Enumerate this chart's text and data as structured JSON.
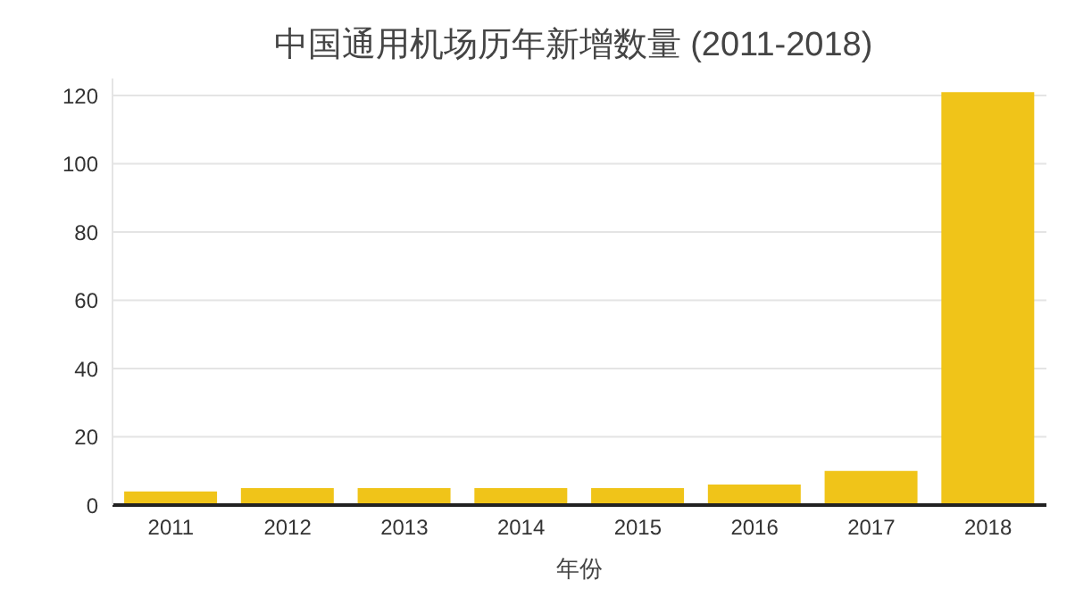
{
  "chart_data": {
    "type": "bar",
    "title": "中国通用机场历年新增数量 (2011-2018)",
    "xlabel": "年份",
    "categories": [
      "2011",
      "2012",
      "2013",
      "2014",
      "2015",
      "2016",
      "2017",
      "2018"
    ],
    "values": [
      4,
      5,
      5,
      5,
      5,
      6,
      10,
      121
    ],
    "color": "#f0c419",
    "ylim": [
      0,
      125
    ],
    "yticks": [
      0,
      20,
      40,
      60,
      80,
      100,
      120
    ],
    "grid": "y"
  }
}
